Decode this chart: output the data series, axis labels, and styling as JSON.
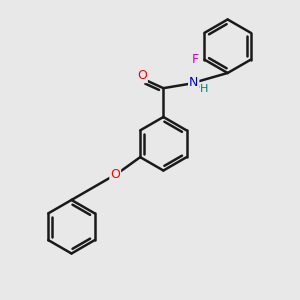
{
  "background_color": "#e8e8e8",
  "bond_color": "#1a1a1a",
  "bond_width": 1.8,
  "figsize": [
    3.0,
    3.0
  ],
  "dpi": 100,
  "colors": {
    "O": "#ff0000",
    "N": "#0000cd",
    "F": "#cc00cc",
    "H": "#008080",
    "C": "#1a1a1a"
  },
  "xlim": [
    -1.6,
    1.6
  ],
  "ylim": [
    -1.9,
    1.4
  ]
}
